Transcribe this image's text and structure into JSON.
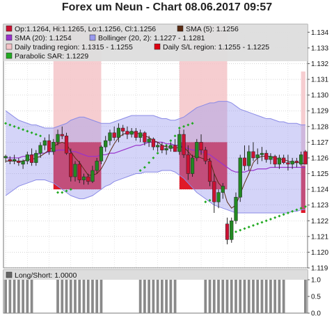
{
  "title": "Forex um Neun - Chart 08.06.2017 09:57",
  "legend": [
    {
      "name": "ohlc",
      "label": "Op:1.1264, Hi:1.1265, Lo:1.1256, Cl:1.1256",
      "color": "#cc1133"
    },
    {
      "name": "sma5",
      "label": "SMA (5): 1.1256",
      "color": "#5a2b12"
    },
    {
      "name": "sma20",
      "label": "SMA (20): 1.1254",
      "color": "#9933cc"
    },
    {
      "name": "bollinger",
      "label": "Bollinger (20, 2): 1.1227 - 1.1281",
      "color": "#9999ee"
    },
    {
      "name": "trading-region",
      "label": "Daily trading region: 1.1315 - 1.1255",
      "color": "#f4c4c8"
    },
    {
      "name": "sl-region",
      "label": "Daily S/L region: 1.1255 - 1.1225",
      "color": "#dd0011"
    },
    {
      "name": "psar",
      "label": "Parabolic SAR: 1.1229",
      "color": "#22aa22"
    }
  ],
  "sub_legend": {
    "label": "Long/Short: 1.0000",
    "color": "#666666"
  },
  "chart_data": [
    {
      "type": "candlestick",
      "title": "Forex um Neun - Chart 08.06.2017 09:57",
      "ylim": [
        1.119,
        1.1345
      ],
      "y_ticks": [
        "1.134",
        "1.133",
        "1.132",
        "1.131",
        "1.130",
        "1.129",
        "1.128",
        "1.127",
        "1.126",
        "1.125",
        "1.124",
        "1.123",
        "1.122",
        "1.121",
        "1.120",
        "1.119"
      ],
      "n_bars": 70,
      "up_color": "#228822",
      "down_color": "#cc1133",
      "candles": [
        [
          1.126,
          1.1262,
          1.1257,
          1.1261
        ],
        [
          1.1259,
          1.1261,
          1.1256,
          1.1258
        ],
        [
          1.1258,
          1.1262,
          1.1256,
          1.1259
        ],
        [
          1.1258,
          1.126,
          1.1255,
          1.1257
        ],
        [
          1.1256,
          1.1259,
          1.1253,
          1.1258
        ],
        [
          1.1258,
          1.1264,
          1.1256,
          1.1262
        ],
        [
          1.1262,
          1.1266,
          1.1255,
          1.1257
        ],
        [
          1.1257,
          1.1265,
          1.1255,
          1.1263
        ],
        [
          1.1263,
          1.127,
          1.126,
          1.1268
        ],
        [
          1.1268,
          1.1273,
          1.1265,
          1.1271
        ],
        [
          1.1271,
          1.1275,
          1.1262,
          1.1264
        ],
        [
          1.1264,
          1.1272,
          1.1262,
          1.127
        ],
        [
          1.127,
          1.1278,
          1.1268,
          1.1275
        ],
        [
          1.1275,
          1.128,
          1.1272,
          1.1274
        ],
        [
          1.1274,
          1.1276,
          1.1262,
          1.1263
        ],
        [
          1.1263,
          1.1266,
          1.1245,
          1.1248
        ],
        [
          1.1248,
          1.1258,
          1.1245,
          1.1256
        ],
        [
          1.1256,
          1.1258,
          1.1244,
          1.1246
        ],
        [
          1.1246,
          1.125,
          1.1243,
          1.1248
        ],
        [
          1.1248,
          1.125,
          1.1243,
          1.1245
        ],
        [
          1.1245,
          1.1255,
          1.1244,
          1.1252
        ],
        [
          1.1252,
          1.126,
          1.125,
          1.1258
        ],
        [
          1.1258,
          1.1268,
          1.1256,
          1.1267
        ],
        [
          1.1267,
          1.1274,
          1.1264,
          1.1271
        ],
        [
          1.1271,
          1.1278,
          1.1268,
          1.1276
        ],
        [
          1.1276,
          1.128,
          1.1271,
          1.1273
        ],
        [
          1.1273,
          1.1282,
          1.127,
          1.1279
        ],
        [
          1.1279,
          1.1281,
          1.1274,
          1.1277
        ],
        [
          1.1277,
          1.128,
          1.1272,
          1.1275
        ],
        [
          1.1275,
          1.1279,
          1.1273,
          1.1277
        ],
        [
          1.1277,
          1.1279,
          1.1271,
          1.1273
        ],
        [
          1.1273,
          1.1278,
          1.127,
          1.1276
        ],
        [
          1.1276,
          1.1277,
          1.1268,
          1.127
        ],
        [
          1.127,
          1.1274,
          1.1267,
          1.1272
        ],
        [
          1.1272,
          1.1273,
          1.1265,
          1.1267
        ],
        [
          1.1267,
          1.127,
          1.1264,
          1.1268
        ],
        [
          1.1268,
          1.127,
          1.1263,
          1.1265
        ],
        [
          1.1265,
          1.1268,
          1.1262,
          1.1266
        ],
        [
          1.1266,
          1.127,
          1.1264,
          1.1268
        ],
        [
          1.1268,
          1.1272,
          1.1264,
          1.1264
        ],
        [
          1.1264,
          1.1278,
          1.1262,
          1.1275
        ],
        [
          1.1275,
          1.1278,
          1.126,
          1.1262
        ],
        [
          1.1262,
          1.1268,
          1.1246,
          1.125
        ],
        [
          1.125,
          1.1262,
          1.1248,
          1.126
        ],
        [
          1.126,
          1.1272,
          1.1258,
          1.127
        ],
        [
          1.127,
          1.1275,
          1.1262,
          1.1265
        ],
        [
          1.1265,
          1.1267,
          1.1256,
          1.1258
        ],
        [
          1.1258,
          1.126,
          1.1242,
          1.1245
        ],
        [
          1.1245,
          1.125,
          1.1225,
          1.1232
        ],
        [
          1.1232,
          1.124,
          1.1228,
          1.1238
        ],
        [
          1.1238,
          1.1244,
          1.1234,
          1.1242
        ],
        [
          1.1218,
          1.1222,
          1.1205,
          1.1208
        ],
        [
          1.1208,
          1.1222,
          1.1206,
          1.122
        ],
        [
          1.122,
          1.1238,
          1.1218,
          1.1235
        ],
        [
          1.1235,
          1.1262,
          1.1232,
          1.126
        ],
        [
          1.126,
          1.1268,
          1.1252,
          1.1255
        ],
        [
          1.1255,
          1.1268,
          1.1252,
          1.1264
        ],
        [
          1.1264,
          1.127,
          1.1258,
          1.126
        ],
        [
          1.126,
          1.1266,
          1.1256,
          1.1262
        ],
        [
          1.1262,
          1.1267,
          1.1258,
          1.1263
        ],
        [
          1.1263,
          1.1265,
          1.1257,
          1.1259
        ],
        [
          1.1259,
          1.1263,
          1.1256,
          1.1261
        ],
        [
          1.1261,
          1.1262,
          1.1254,
          1.1256
        ],
        [
          1.1256,
          1.1262,
          1.1253,
          1.126
        ],
        [
          1.126,
          1.1262,
          1.1256,
          1.1257
        ],
        [
          1.1257,
          1.1262,
          1.1252,
          1.1256
        ],
        [
          1.1256,
          1.126,
          1.1253,
          1.1258
        ],
        [
          1.1258,
          1.126,
          1.1254,
          1.1257
        ],
        [
          1.1256,
          1.1264,
          1.1255,
          1.1262
        ],
        [
          1.1264,
          1.1265,
          1.1256,
          1.1256
        ]
      ],
      "sma5": [
        1.1258,
        1.1258,
        1.1258,
        1.1258,
        1.1258,
        1.1259,
        1.1259,
        1.126,
        1.1261,
        1.1263,
        1.1265,
        1.1267,
        1.1269,
        1.127,
        1.1269,
        1.1264,
        1.126,
        1.1257,
        1.1253,
        1.1249,
        1.1249,
        1.125,
        1.1253,
        1.1258,
        1.1264,
        1.1269,
        1.1273,
        1.1275,
        1.1276,
        1.1276,
        1.1276,
        1.1275,
        1.1274,
        1.1273,
        1.1271,
        1.127,
        1.1268,
        1.1267,
        1.1267,
        1.1266,
        1.1267,
        1.1267,
        1.1264,
        1.1261,
        1.1261,
        1.126,
        1.1259,
        1.1259,
        1.125,
        1.1244,
        1.1241,
        1.1232,
        1.1228,
        1.123,
        1.1237,
        1.1244,
        1.125,
        1.1257,
        1.126,
        1.1261,
        1.1261,
        1.1261,
        1.126,
        1.1259,
        1.1259,
        1.1258,
        1.1257,
        1.1257,
        1.1257,
        1.1256
      ],
      "sma20": [
        1.126,
        1.126,
        1.126,
        1.126,
        1.1261,
        1.1261,
        1.1262,
        1.1262,
        1.1263,
        1.1263,
        1.1264,
        1.1264,
        1.1265,
        1.1265,
        1.1265,
        1.1264,
        1.1264,
        1.1263,
        1.1262,
        1.1261,
        1.1261,
        1.1261,
        1.1262,
        1.1262,
        1.1263,
        1.1263,
        1.1264,
        1.1265,
        1.1266,
        1.1267,
        1.1268,
        1.1268,
        1.1269,
        1.127,
        1.127,
        1.127,
        1.127,
        1.1269,
        1.1269,
        1.1268,
        1.1268,
        1.1267,
        1.1266,
        1.1265,
        1.1265,
        1.1264,
        1.1263,
        1.1262,
        1.126,
        1.1258,
        1.1256,
        1.1254,
        1.1252,
        1.1251,
        1.1251,
        1.1251,
        1.1252,
        1.1252,
        1.1253,
        1.1253,
        1.1253,
        1.1254,
        1.1254,
        1.1254,
        1.1254,
        1.1254,
        1.1254,
        1.1254,
        1.1254,
        1.1254
      ],
      "boll_upper": [
        1.129,
        1.1288,
        1.1286,
        1.1284,
        1.1283,
        1.1282,
        1.1281,
        1.1281,
        1.128,
        1.1279,
        1.1279,
        1.1279,
        1.128,
        1.1281,
        1.1282,
        1.1284,
        1.1285,
        1.1286,
        1.1286,
        1.1285,
        1.1284,
        1.1283,
        1.1282,
        1.1282,
        1.1282,
        1.1283,
        1.1284,
        1.1285,
        1.1286,
        1.1287,
        1.1287,
        1.1287,
        1.1287,
        1.1287,
        1.1287,
        1.1286,
        1.1285,
        1.1285,
        1.1284,
        1.1284,
        1.1285,
        1.1286,
        1.1288,
        1.129,
        1.1292,
        1.1293,
        1.1294,
        1.1295,
        1.1295,
        1.1296,
        1.1296,
        1.1296,
        1.1295,
        1.1293,
        1.1291,
        1.129,
        1.1289,
        1.1288,
        1.1287,
        1.1286,
        1.1285,
        1.1285,
        1.1284,
        1.1283,
        1.1283,
        1.1282,
        1.1282,
        1.1282,
        1.1281,
        1.1281
      ],
      "boll_lower": [
        1.1236,
        1.1238,
        1.124,
        1.1242,
        1.1243,
        1.1244,
        1.1245,
        1.1246,
        1.1246,
        1.1246,
        1.1245,
        1.1244,
        1.1242,
        1.124,
        1.1238,
        1.1236,
        1.1235,
        1.1234,
        1.1234,
        1.1235,
        1.1236,
        1.1238,
        1.124,
        1.1242,
        1.1243,
        1.1245,
        1.1246,
        1.1247,
        1.1248,
        1.1249,
        1.125,
        1.125,
        1.1251,
        1.1251,
        1.1251,
        1.1251,
        1.1252,
        1.1252,
        1.1252,
        1.1251,
        1.1249,
        1.1247,
        1.1244,
        1.1241,
        1.1238,
        1.1236,
        1.1234,
        1.1232,
        1.123,
        1.1229,
        1.1228,
        1.1227,
        1.1226,
        1.1225,
        1.1225,
        1.1225,
        1.1225,
        1.1225,
        1.1225,
        1.1225,
        1.1225,
        1.1225,
        1.1225,
        1.1225,
        1.1225,
        1.1225,
        1.1226,
        1.1226,
        1.1227,
        1.1227
      ],
      "psar": [
        [
          0,
          1.1282
        ],
        [
          1,
          1.1281
        ],
        [
          2,
          1.128
        ],
        [
          3,
          1.1279
        ],
        [
          4,
          1.1278
        ],
        [
          5,
          1.1277
        ],
        [
          6,
          1.1276
        ],
        [
          7,
          1.1275
        ],
        [
          8,
          1.1274
        ],
        [
          12,
          1.1238
        ],
        [
          13,
          1.1238
        ],
        [
          14,
          1.1239
        ],
        [
          15,
          1.124
        ],
        [
          31,
          1.1252
        ],
        [
          32,
          1.1254
        ],
        [
          33,
          1.1257
        ],
        [
          34,
          1.126
        ],
        [
          35,
          1.1263
        ],
        [
          36,
          1.1266
        ],
        [
          37,
          1.1268
        ],
        [
          38,
          1.1271
        ],
        [
          39,
          1.1274
        ],
        [
          40,
          1.1279
        ],
        [
          41,
          1.128
        ],
        [
          42,
          1.1281
        ],
        [
          43,
          1.1282
        ],
        [
          46,
          1.1232
        ],
        [
          47,
          1.1233
        ],
        [
          52,
          1.1212
        ],
        [
          53,
          1.1213
        ],
        [
          54,
          1.1214
        ],
        [
          55,
          1.1215
        ],
        [
          56,
          1.1216
        ],
        [
          57,
          1.1217
        ],
        [
          58,
          1.1218
        ],
        [
          59,
          1.1219
        ],
        [
          60,
          1.122
        ],
        [
          61,
          1.1221
        ],
        [
          62,
          1.1222
        ],
        [
          63,
          1.1223
        ],
        [
          64,
          1.1224
        ],
        [
          65,
          1.1225
        ],
        [
          66,
          1.1226
        ],
        [
          67,
          1.1227
        ],
        [
          68,
          1.1228
        ],
        [
          69,
          1.1229
        ]
      ],
      "trading_regions": [
        [
          11.5,
          22.5,
          1.127,
          1.1345
        ],
        [
          40.5,
          51.5,
          1.127,
          1.1345
        ],
        [
          68.5,
          69.5,
          1.1255,
          1.1315
        ]
      ],
      "sl_regions": [
        [
          11.5,
          22.5,
          1.124,
          1.127
        ],
        [
          40.5,
          51.5,
          1.124,
          1.127
        ],
        [
          68.5,
          69.5,
          1.1225,
          1.1255
        ]
      ]
    },
    {
      "type": "bar",
      "title": "Long/Short",
      "ylim": [
        0,
        1
      ],
      "y_ticks": [
        "1.0",
        "0.5",
        "0.0"
      ],
      "values": [
        1,
        1,
        1,
        1,
        1,
        1,
        1,
        0,
        0,
        0,
        0,
        0,
        1,
        1,
        1,
        1,
        1,
        1,
        1,
        1,
        1,
        1,
        1,
        0,
        0,
        0,
        0,
        0,
        0,
        0,
        0,
        1,
        1,
        1,
        1,
        1,
        1,
        1,
        1,
        1,
        0,
        0,
        0,
        0,
        0,
        0,
        1,
        1,
        1,
        1,
        1,
        1,
        1,
        1,
        1,
        1,
        1,
        1,
        1,
        1,
        1,
        1,
        1,
        1,
        1,
        0,
        0,
        0,
        0,
        1
      ]
    }
  ]
}
